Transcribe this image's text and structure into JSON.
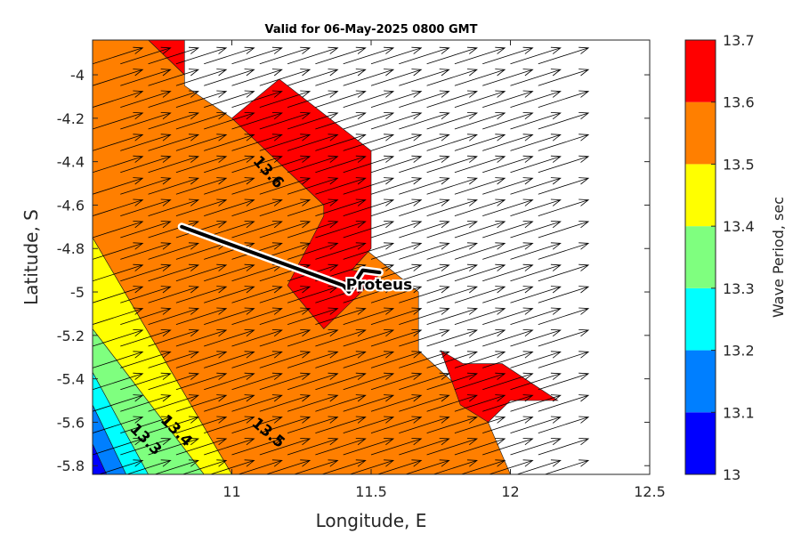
{
  "chart_data": {
    "type": "contour",
    "title": "Valid for 06-May-2025 0800 GMT",
    "xlabel": "Longitude, E",
    "ylabel": "Latitude, S",
    "xlim": [
      10.5,
      12.5
    ],
    "ylim": [
      -5.84,
      -3.84
    ],
    "xticks": [
      11,
      11.5,
      12,
      12.5
    ],
    "xtick_labels": [
      "11",
      "11.5",
      "12",
      "12.5"
    ],
    "yticks": [
      -5.8,
      -5.6,
      -5.4,
      -5.2,
      -5.0,
      -4.8,
      -4.6,
      -4.4,
      -4.2,
      -4.0
    ],
    "ytick_labels": [
      "-5.8",
      "-5.6",
      "-5.4",
      "-5.2",
      "-5",
      "-4.8",
      "-4.6",
      "-4.4",
      "-4.2",
      "-4"
    ],
    "colorbar": {
      "label": "Wave Period, sec",
      "levels": [
        13,
        13.1,
        13.2,
        13.3,
        13.4,
        13.5,
        13.6,
        13.7
      ],
      "level_labels": [
        "13",
        "13.1",
        "13.2",
        "13.3",
        "13.4",
        "13.5",
        "13.6",
        "13.7"
      ],
      "colors": [
        "#0000ff",
        "#007fff",
        "#00ffff",
        "#7fff7f",
        "#ffff00",
        "#ff7f00",
        "#ff0000"
      ]
    },
    "contour_labels": [
      {
        "text": "13.6",
        "lon": 11.13,
        "lat": -4.45,
        "angle": 48
      },
      {
        "text": "13.5",
        "lon": 11.13,
        "lat": -5.65,
        "angle": 40
      },
      {
        "text": "13.4",
        "lon": 10.8,
        "lat": -5.64,
        "angle": 45
      },
      {
        "text": "13.3",
        "lon": 10.69,
        "lat": -5.68,
        "angle": 45
      }
    ],
    "regions": [
      {
        "level": "13.6-13.7",
        "color": "#ff0000",
        "polygon": [
          [
            10.7,
            -3.84
          ],
          [
            10.83,
            -3.84
          ],
          [
            10.83,
            -4.0
          ],
          [
            10.7,
            -3.84
          ]
        ]
      },
      {
        "level": "13.5-13.6",
        "color": "#ff7f00",
        "polygon": [
          [
            10.5,
            -3.84
          ],
          [
            10.7,
            -3.84
          ],
          [
            10.83,
            -4.0
          ],
          [
            10.83,
            -4.05
          ],
          [
            11.0,
            -4.2
          ],
          [
            11.33,
            -4.6
          ],
          [
            11.33,
            -4.65
          ],
          [
            11.67,
            -5.0
          ],
          [
            11.67,
            -5.27
          ],
          [
            11.9,
            -5.54
          ],
          [
            12.0,
            -5.84
          ],
          [
            11.0,
            -5.84
          ],
          [
            10.5,
            -4.75
          ]
        ]
      },
      {
        "level": "13.6-13.7",
        "color": "#ff0000",
        "polygon": [
          [
            11.0,
            -4.2
          ],
          [
            11.17,
            -4.02
          ],
          [
            11.5,
            -4.35
          ],
          [
            11.5,
            -4.8
          ],
          [
            11.43,
            -4.9
          ],
          [
            11.53,
            -4.92
          ],
          [
            11.33,
            -5.17
          ],
          [
            11.2,
            -4.97
          ],
          [
            11.33,
            -4.65
          ],
          [
            11.33,
            -4.6
          ],
          [
            11.0,
            -4.2
          ]
        ]
      },
      {
        "level": "13.6-13.7",
        "color": "#ff0000",
        "polygon": [
          [
            11.75,
            -5.27
          ],
          [
            11.83,
            -5.33
          ],
          [
            11.97,
            -5.33
          ],
          [
            12.17,
            -5.5
          ],
          [
            12.0,
            -5.5
          ],
          [
            11.92,
            -5.6
          ],
          [
            11.82,
            -5.52
          ],
          [
            11.75,
            -5.27
          ]
        ]
      },
      {
        "level": "13.4-13.5",
        "color": "#ffff00",
        "polygon": [
          [
            10.5,
            -4.75
          ],
          [
            11.0,
            -5.84
          ],
          [
            10.9,
            -5.84
          ],
          [
            10.5,
            -5.17
          ]
        ]
      },
      {
        "level": "13.3-13.4",
        "color": "#7fff7f",
        "polygon": [
          [
            10.5,
            -5.17
          ],
          [
            10.9,
            -5.84
          ],
          [
            10.7,
            -5.84
          ],
          [
            10.5,
            -5.37
          ]
        ]
      },
      {
        "level": "13.2-13.3",
        "color": "#00ffff",
        "polygon": [
          [
            10.5,
            -5.37
          ],
          [
            10.7,
            -5.84
          ],
          [
            10.62,
            -5.84
          ],
          [
            10.5,
            -5.52
          ]
        ]
      },
      {
        "level": "13.1-13.2",
        "color": "#007fff",
        "polygon": [
          [
            10.5,
            -5.52
          ],
          [
            10.62,
            -5.84
          ],
          [
            10.55,
            -5.84
          ],
          [
            10.5,
            -5.7
          ]
        ]
      },
      {
        "level": "13.0-13.1",
        "color": "#0000ff",
        "polygon": [
          [
            10.5,
            -5.7
          ],
          [
            10.55,
            -5.84
          ],
          [
            10.5,
            -5.84
          ]
        ]
      }
    ],
    "vectors": {
      "lon0": 10.5,
      "dlon": 0.1,
      "ncols": 17,
      "lat0": -5.85,
      "dlat": 0.1,
      "nrows": 20,
      "du_lon": 0.18,
      "dv_lat": 0.074
    },
    "track": {
      "name": "Proteus",
      "points": [
        [
          10.82,
          -4.7
        ],
        [
          11.4,
          -4.97
        ],
        [
          11.42,
          -5.0
        ],
        [
          11.47,
          -4.9
        ],
        [
          11.53,
          -4.91
        ]
      ],
      "label_lon": 11.41,
      "label_lat": -4.97
    }
  }
}
